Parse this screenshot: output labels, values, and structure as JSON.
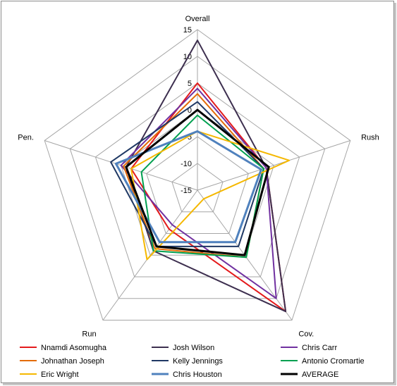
{
  "chart_data": {
    "type": "radar",
    "categories": [
      "Overall",
      "Rush",
      "Cov.",
      "Run",
      "Pen."
    ],
    "rlim": [
      -15,
      15
    ],
    "ticks": [
      -15,
      -10,
      -5,
      0,
      5,
      10,
      15
    ],
    "series": [
      {
        "name": "Nnamdi  Asomugha",
        "color": "#e41a1c",
        "width": 2,
        "values": [
          5,
          -1.5,
          13,
          -6,
          -2
        ]
      },
      {
        "name": "Josh Wilson",
        "color": "#3d2f4f",
        "width": 2,
        "values": [
          13,
          -1.5,
          13,
          -1,
          -1
        ]
      },
      {
        "name": "Chris Carr",
        "color": "#7030a0",
        "width": 2,
        "values": [
          4,
          -1.5,
          10,
          -7,
          0
        ]
      },
      {
        "name": "Johnathan  Joseph",
        "color": "#e36c09",
        "width": 2,
        "values": [
          3,
          -2,
          0.5,
          -1.5,
          -0.5
        ]
      },
      {
        "name": "Kelly Jennings",
        "color": "#1f3864",
        "width": 2,
        "values": [
          1.5,
          -2,
          -2,
          -2,
          2
        ]
      },
      {
        "name": "Antonio Cromartie",
        "color": "#00a050",
        "width": 2,
        "values": [
          -1,
          -2,
          0.5,
          -1,
          -4
        ]
      },
      {
        "name": "Eric Wright",
        "color": "#f5b800",
        "width": 2,
        "values": [
          -4,
          3,
          -13,
          1,
          -2
        ]
      },
      {
        "name": "Chris Houston",
        "color": "#4f81bd",
        "width": 3,
        "values": [
          -4,
          -2.5,
          -3,
          -3,
          1
        ]
      },
      {
        "name": "AVERAGE",
        "color": "#000000",
        "width": 3,
        "values": [
          0,
          -1,
          0,
          -2,
          -1
        ]
      }
    ]
  }
}
